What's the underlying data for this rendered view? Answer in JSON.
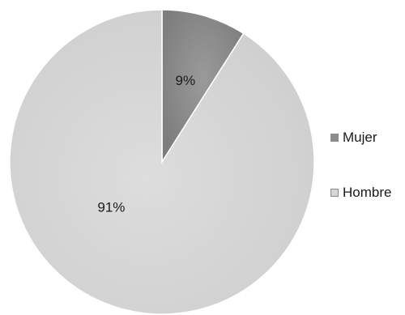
{
  "chart_data": {
    "type": "pie",
    "title": "",
    "slices": [
      {
        "label": "Mujer",
        "value": 9,
        "display": "9%",
        "color": "#8c8c8c"
      },
      {
        "label": "Hombre",
        "value": 91,
        "display": "91%",
        "color": "#d6d6d6"
      }
    ],
    "start": "top",
    "direction": "clockwise",
    "legend_position": "right"
  }
}
